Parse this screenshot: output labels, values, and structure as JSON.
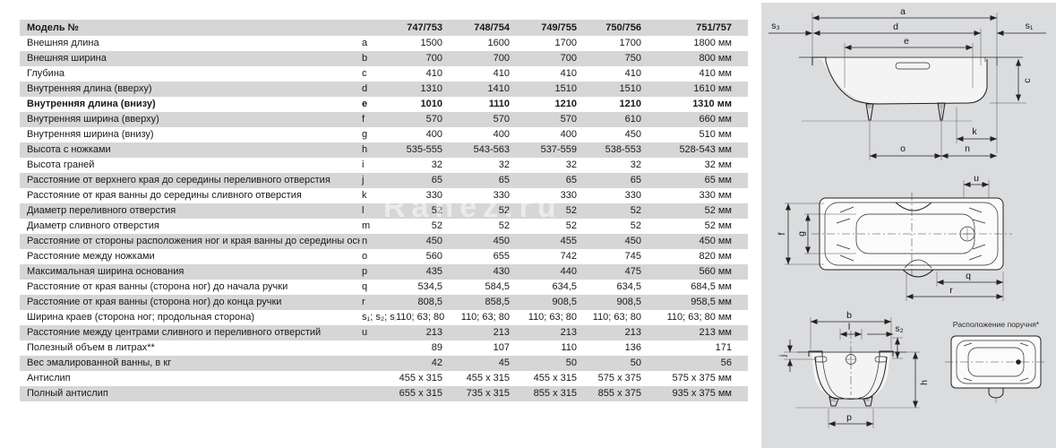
{
  "watermark": "Ranez.ru",
  "table": {
    "header_label": "Модель №",
    "models": [
      "747/753",
      "748/754",
      "749/755",
      "750/756",
      "751/757"
    ],
    "unit": "мм",
    "rows": [
      {
        "label": "Внешняя длина",
        "letter": "a",
        "values": [
          "1500",
          "1600",
          "1700",
          "1700",
          "1800"
        ],
        "unit": true,
        "bold": false
      },
      {
        "label": "Внешняя ширина",
        "letter": "b",
        "values": [
          "700",
          "700",
          "700",
          "750",
          "800"
        ],
        "unit": true,
        "bold": false
      },
      {
        "label": "Глубина",
        "letter": "c",
        "values": [
          "410",
          "410",
          "410",
          "410",
          "410"
        ],
        "unit": true,
        "bold": false
      },
      {
        "label": "Внутренняя длина (вверху)",
        "letter": "d",
        "values": [
          "1310",
          "1410",
          "1510",
          "1510",
          "1610"
        ],
        "unit": true,
        "bold": false
      },
      {
        "label": "Внутренняя длина (внизу)",
        "letter": "e",
        "values": [
          "1010",
          "1110",
          "1210",
          "1210",
          "1310"
        ],
        "unit": true,
        "bold": true
      },
      {
        "label": "Внутренняя ширина (вверху)",
        "letter": "f",
        "values": [
          "570",
          "570",
          "570",
          "610",
          "660"
        ],
        "unit": true,
        "bold": false
      },
      {
        "label": "Внутренняя ширина (внизу)",
        "letter": "g",
        "values": [
          "400",
          "400",
          "400",
          "450",
          "510"
        ],
        "unit": true,
        "bold": false
      },
      {
        "label": "Высота с ножками",
        "letter": "h",
        "values": [
          "535-555",
          "543-563",
          "537-559",
          "538-553",
          "528-543"
        ],
        "unit": true,
        "bold": false
      },
      {
        "label": "Высота граней",
        "letter": "i",
        "values": [
          "32",
          "32",
          "32",
          "32",
          "32"
        ],
        "unit": true,
        "bold": false
      },
      {
        "label": "Расстояние от верхнего края до середины переливного отверстия",
        "letter": "j",
        "values": [
          "65",
          "65",
          "65",
          "65",
          "65"
        ],
        "unit": true,
        "bold": false
      },
      {
        "label": "Расстояние от края ванны до середины сливного отверстия",
        "letter": "k",
        "values": [
          "330",
          "330",
          "330",
          "330",
          "330"
        ],
        "unit": true,
        "bold": false
      },
      {
        "label": "Диаметр переливного отверстия",
        "letter": "l",
        "values": [
          "52",
          "52",
          "52",
          "52",
          "52"
        ],
        "unit": true,
        "bold": false
      },
      {
        "label": "Диаметр сливного отверстия",
        "letter": "m",
        "values": [
          "52",
          "52",
          "52",
          "52",
          "52"
        ],
        "unit": true,
        "bold": false
      },
      {
        "label": "Расстояние от стороны расположения ног и края ванны до середины основания",
        "letter": "n",
        "values": [
          "450",
          "450",
          "455",
          "450",
          "450"
        ],
        "unit": true,
        "bold": false
      },
      {
        "label": "Расстояние между ножками",
        "letter": "o",
        "values": [
          "560",
          "655",
          "742",
          "745",
          "820"
        ],
        "unit": true,
        "bold": false
      },
      {
        "label": "Максимальная ширина основания",
        "letter": "p",
        "values": [
          "435",
          "430",
          "440",
          "475",
          "560"
        ],
        "unit": true,
        "bold": false
      },
      {
        "label": "Расстояние от края ванны (сторона ног) до начала ручки",
        "letter": "q",
        "values": [
          "534,5",
          "584,5",
          "634,5",
          "634,5",
          "684,5"
        ],
        "unit": true,
        "bold": false
      },
      {
        "label": "Расстояние от края ванны (сторона ног) до конца ручки",
        "letter": "r",
        "values": [
          "808,5",
          "858,5",
          "908,5",
          "908,5",
          "958,5"
        ],
        "unit": true,
        "bold": false
      },
      {
        "label": "Ширина краев (сторона ног; продольная сторона)",
        "letter": "s₁; s₂; s₃",
        "values": [
          "110; 63; 80",
          "110; 63; 80",
          "110; 63; 80",
          "110; 63; 80",
          "110; 63; 80"
        ],
        "unit": true,
        "bold": false
      },
      {
        "label": "Расстояние между центрами сливного и переливного отверстий",
        "letter": "u",
        "values": [
          "213",
          "213",
          "213",
          "213",
          "213"
        ],
        "unit": true,
        "bold": false
      },
      {
        "label": "Полезный объем в литрах**",
        "letter": "",
        "values": [
          "89",
          "107",
          "110",
          "136",
          "171"
        ],
        "unit": false,
        "bold": false
      },
      {
        "label": "Вес эмалированной ванны, в кг",
        "letter": "",
        "values": [
          "42",
          "45",
          "50",
          "50",
          "56"
        ],
        "unit": false,
        "bold": false
      },
      {
        "label": "Антислип",
        "letter": "",
        "values": [
          "455 x 315",
          "455 x 315",
          "455 x 315",
          "575 x 375",
          "575 x 375"
        ],
        "unit": true,
        "bold": false
      },
      {
        "label": "Полный антислип",
        "letter": "",
        "values": [
          "655 x 315",
          "735 x 315",
          "855 x 315",
          "855 x 375",
          "935 x 375"
        ],
        "unit": true,
        "bold": false
      }
    ]
  },
  "diagrams": {
    "side": {
      "labels": {
        "a": "a",
        "d": "d",
        "e": "e",
        "s3": "s₃",
        "s1": "s₁",
        "c": "c",
        "k": "k",
        "o": "o",
        "n": "n"
      }
    },
    "top": {
      "labels": {
        "u": "u",
        "f": "f",
        "g": "g",
        "q": "q",
        "r": "r"
      }
    },
    "end": {
      "labels": {
        "b": "b",
        "l": "l",
        "s2": "s₂",
        "j": "j",
        "h": "h",
        "p": "p"
      },
      "caption": "Расположение поручня*"
    }
  }
}
